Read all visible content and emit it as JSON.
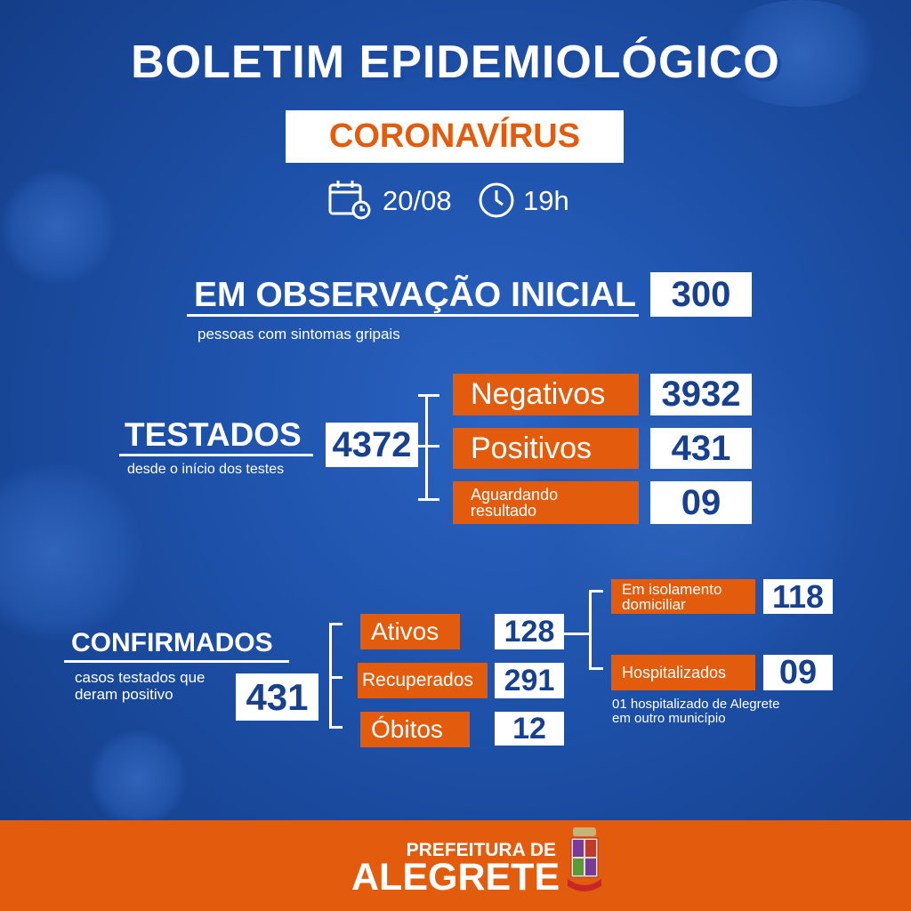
{
  "header": {
    "title": "BOLETIM EPIDEMIOLÓGICO",
    "subtitle": "CORONAVÍRUS",
    "date": "20/08",
    "time": "19h"
  },
  "observacao": {
    "label": "EM OBSERVAÇÃO INICIAL",
    "value": "300",
    "note": "pessoas com sintomas gripais"
  },
  "testados": {
    "label": "TESTADOS",
    "note": "desde o início dos testes",
    "value": "4372",
    "items": [
      {
        "label": "Negativos",
        "value": "3932"
      },
      {
        "label": "Positivos",
        "value": "431"
      },
      {
        "label": "Aguardando resultado",
        "value": "09"
      }
    ]
  },
  "confirmados": {
    "label": "CONFIRMADOS",
    "note_line1": "casos testados que",
    "note_line2": "deram positivo",
    "value": "431",
    "items": [
      {
        "label": "Ativos",
        "value": "128"
      },
      {
        "label": "Recuperados",
        "value": "291"
      },
      {
        "label": "Óbitos",
        "value": "12"
      }
    ],
    "ativos_breakdown": [
      {
        "label": "Em isolamento domiciliar",
        "value": "118"
      },
      {
        "label": "Hospitalizados",
        "value": "09"
      }
    ],
    "hospital_note_line1": "01 hospitalizado de Alegrete",
    "hospital_note_line2": "em outro município"
  },
  "footer": {
    "line1": "PREFEITURA DE",
    "line2": "ALEGRETE",
    "crest_text": "ALEGRETE"
  },
  "colors": {
    "background": "#1d50a8",
    "accent": "#e35c0d",
    "number_text": "#17408f"
  }
}
